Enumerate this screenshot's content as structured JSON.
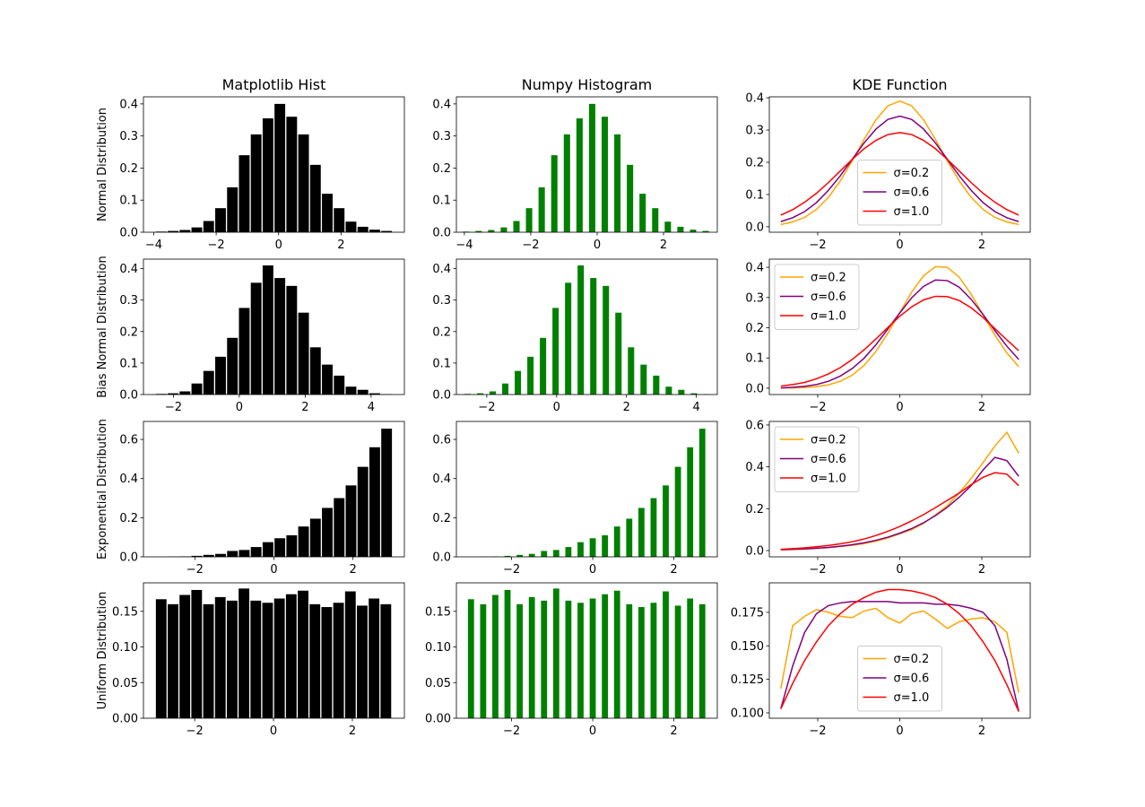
{
  "chart_data": [
    {
      "type": "histogram",
      "title": "Matplotlib Hist",
      "ylabel": "Normal Distribution",
      "color": "#000000",
      "rwidth": 0.9,
      "bins": [
        -3.95,
        -3.57,
        -3.19,
        -2.81,
        -2.43,
        -2.05,
        -1.67,
        -1.29,
        -0.91,
        -0.53,
        -0.15,
        0.23,
        0.61,
        0.99,
        1.37,
        1.75,
        2.13,
        2.51,
        2.89,
        3.27,
        3.65
      ],
      "values": [
        0.002,
        0.004,
        0.007,
        0.015,
        0.035,
        0.075,
        0.14,
        0.24,
        0.305,
        0.355,
        0.4,
        0.36,
        0.305,
        0.21,
        0.12,
        0.075,
        0.033,
        0.017,
        0.008,
        0.004
      ],
      "xlim": [
        -4.33,
        4.03
      ],
      "ylim": [
        0,
        0.422
      ],
      "xticks": [
        {
          "value": -4,
          "label": "−4"
        },
        {
          "value": -2,
          "label": "−2"
        },
        0,
        2
      ],
      "yticks": [
        {
          "value": 0,
          "label": "0.0"
        },
        0.1,
        0.2,
        0.3,
        0.4
      ]
    },
    {
      "type": "bar",
      "title": "Numpy Histogram",
      "color": "#008000",
      "bar_width": 0.19,
      "x": [
        -3.95,
        -3.57,
        -3.19,
        -2.81,
        -2.43,
        -2.05,
        -1.67,
        -1.29,
        -0.91,
        -0.53,
        -0.15,
        0.23,
        0.61,
        0.99,
        1.37,
        1.75,
        2.13,
        2.51,
        2.89,
        3.27
      ],
      "values": [
        0.002,
        0.004,
        0.007,
        0.015,
        0.035,
        0.075,
        0.14,
        0.24,
        0.305,
        0.355,
        0.4,
        0.36,
        0.305,
        0.21,
        0.12,
        0.075,
        0.033,
        0.017,
        0.008,
        0.004
      ],
      "xlim": [
        -4.24,
        3.62
      ],
      "ylim": [
        0,
        0.422
      ],
      "xticks": [
        {
          "value": -4,
          "label": "−4"
        },
        {
          "value": -2,
          "label": "−2"
        },
        0,
        2
      ],
      "yticks": [
        {
          "value": 0,
          "label": "0.0"
        },
        0.1,
        0.2,
        0.3,
        0.4
      ]
    },
    {
      "type": "line",
      "title": "KDE Function",
      "legend": "lower center",
      "x": [
        -2.9,
        -2.61,
        -2.32,
        -2.03,
        -1.74,
        -1.45,
        -1.16,
        -0.87,
        -0.58,
        -0.29,
        0,
        0.29,
        0.58,
        0.87,
        1.16,
        1.45,
        1.74,
        2.03,
        2.32,
        2.61,
        2.9
      ],
      "series": [
        {
          "name": "σ=0.2",
          "color": "#ffa500",
          "values": [
            0.007,
            0.015,
            0.029,
            0.054,
            0.091,
            0.142,
            0.204,
            0.271,
            0.332,
            0.375,
            0.39,
            0.375,
            0.332,
            0.271,
            0.204,
            0.142,
            0.091,
            0.054,
            0.029,
            0.015,
            0.007
          ]
        },
        {
          "name": "σ=0.6",
          "color": "#800080",
          "values": [
            0.016,
            0.028,
            0.047,
            0.075,
            0.113,
            0.158,
            0.209,
            0.26,
            0.303,
            0.333,
            0.343,
            0.333,
            0.303,
            0.26,
            0.209,
            0.158,
            0.113,
            0.075,
            0.047,
            0.028,
            0.016
          ]
        },
        {
          "name": "σ=1.0",
          "color": "#ff0000",
          "values": [
            0.036,
            0.053,
            0.076,
            0.104,
            0.137,
            0.173,
            0.209,
            0.242,
            0.268,
            0.286,
            0.292,
            0.286,
            0.268,
            0.242,
            0.209,
            0.173,
            0.137,
            0.104,
            0.076,
            0.053,
            0.036
          ]
        }
      ],
      "xlim": [
        -3.18,
        3.18
      ],
      "ylim": [
        -0.017,
        0.403
      ],
      "xticks": [
        {
          "value": -2,
          "label": "−2"
        },
        0,
        2
      ],
      "yticks": [
        {
          "value": 0,
          "label": "0.0"
        },
        0.1,
        0.2,
        0.3,
        0.4
      ]
    },
    {
      "type": "histogram",
      "ylabel": "Bias Normal Distribution",
      "color": "#000000",
      "rwidth": 0.9,
      "bins": [
        -2.55,
        -2.19,
        -1.83,
        -1.47,
        -1.11,
        -0.75,
        -0.39,
        -0.03,
        0.33,
        0.69,
        1.05,
        1.41,
        1.77,
        2.13,
        2.49,
        2.85,
        3.21,
        3.57,
        3.93,
        4.29,
        4.65
      ],
      "values": [
        0.002,
        0.004,
        0.01,
        0.035,
        0.075,
        0.12,
        0.18,
        0.275,
        0.355,
        0.41,
        0.37,
        0.345,
        0.26,
        0.15,
        0.095,
        0.06,
        0.025,
        0.015,
        0.004,
        0.001
      ],
      "xlim": [
        -2.91,
        5.01
      ],
      "ylim": [
        0,
        0.43
      ],
      "xticks": [
        {
          "value": -2,
          "label": "−2"
        },
        0,
        2,
        4
      ],
      "yticks": [
        {
          "value": 0,
          "label": "0.0"
        },
        0.1,
        0.2,
        0.3,
        0.4
      ]
    },
    {
      "type": "bar",
      "color": "#008000",
      "bar_width": 0.18,
      "x": [
        -2.55,
        -2.19,
        -1.83,
        -1.47,
        -1.11,
        -0.75,
        -0.39,
        -0.03,
        0.33,
        0.69,
        1.05,
        1.41,
        1.77,
        2.13,
        2.49,
        2.85,
        3.21,
        3.57,
        3.93,
        4.29
      ],
      "values": [
        0.002,
        0.004,
        0.01,
        0.035,
        0.075,
        0.12,
        0.18,
        0.275,
        0.355,
        0.41,
        0.37,
        0.345,
        0.26,
        0.15,
        0.095,
        0.06,
        0.025,
        0.015,
        0.004,
        0.001
      ],
      "xlim": [
        -2.87,
        4.6
      ],
      "ylim": [
        0,
        0.43
      ],
      "xticks": [
        {
          "value": -2,
          "label": "−2"
        },
        0,
        2,
        4
      ],
      "yticks": [
        {
          "value": 0,
          "label": "0.0"
        },
        0.1,
        0.2,
        0.3,
        0.4
      ]
    },
    {
      "type": "line",
      "legend": "upper left",
      "x": [
        -2.9,
        -2.61,
        -2.32,
        -2.03,
        -1.74,
        -1.45,
        -1.16,
        -0.87,
        -0.58,
        -0.29,
        0,
        0.29,
        0.58,
        0.87,
        1.16,
        1.45,
        1.74,
        2.03,
        2.32,
        2.61,
        2.9
      ],
      "series": [
        {
          "name": "σ=0.2",
          "color": "#ffa500",
          "values": [
            0.001,
            0.001,
            0.002,
            0.005,
            0.011,
            0.023,
            0.043,
            0.075,
            0.122,
            0.182,
            0.25,
            0.318,
            0.372,
            0.402,
            0.4,
            0.367,
            0.311,
            0.243,
            0.175,
            0.117,
            0.071
          ]
        },
        {
          "name": "σ=0.6",
          "color": "#800080",
          "values": [
            0.001,
            0.003,
            0.006,
            0.012,
            0.023,
            0.04,
            0.065,
            0.099,
            0.144,
            0.196,
            0.249,
            0.299,
            0.337,
            0.358,
            0.356,
            0.334,
            0.294,
            0.244,
            0.19,
            0.139,
            0.095
          ]
        },
        {
          "name": "σ=1.0",
          "color": "#ff0000",
          "values": [
            0.007,
            0.012,
            0.019,
            0.031,
            0.047,
            0.068,
            0.095,
            0.127,
            0.163,
            0.201,
            0.238,
            0.269,
            0.292,
            0.304,
            0.303,
            0.29,
            0.266,
            0.234,
            0.197,
            0.16,
            0.124
          ]
        }
      ],
      "xlim": [
        -3.18,
        3.18
      ],
      "ylim": [
        -0.021,
        0.427
      ],
      "xticks": [
        {
          "value": -2,
          "label": "−2"
        },
        0,
        2
      ],
      "yticks": [
        {
          "value": 0,
          "label": "0.0"
        },
        0.1,
        0.2,
        0.3,
        0.4
      ]
    },
    {
      "type": "histogram",
      "ylabel": "Exponential Distribution",
      "color": "#000000",
      "rwidth": 0.9,
      "bins": [
        -3,
        -2.7,
        -2.4,
        -2.1,
        -1.8,
        -1.5,
        -1.2,
        -0.9,
        -0.6,
        -0.3,
        0,
        0.3,
        0.6,
        0.9,
        1.2,
        1.5,
        1.8,
        2.1,
        2.4,
        2.7,
        3
      ],
      "values": [
        0,
        0.001,
        0.002,
        0.005,
        0.01,
        0.015,
        0.03,
        0.035,
        0.05,
        0.075,
        0.095,
        0.11,
        0.155,
        0.195,
        0.25,
        0.3,
        0.365,
        0.46,
        0.56,
        0.655
      ],
      "xlim": [
        -3.3,
        3.3
      ],
      "ylim": [
        0,
        0.692
      ],
      "xticks": [
        {
          "value": -2,
          "label": "−2"
        },
        0,
        2
      ],
      "yticks": [
        {
          "value": 0,
          "label": "0.0"
        },
        0.2,
        0.4,
        0.6
      ]
    },
    {
      "type": "bar",
      "color": "#008000",
      "bar_width": 0.15,
      "x": [
        -3,
        -2.7,
        -2.4,
        -2.1,
        -1.8,
        -1.5,
        -1.2,
        -0.9,
        -0.6,
        -0.3,
        0,
        0.3,
        0.6,
        0.9,
        1.2,
        1.5,
        1.8,
        2.1,
        2.4,
        2.7
      ],
      "values": [
        0,
        0.001,
        0.002,
        0.005,
        0.01,
        0.015,
        0.03,
        0.035,
        0.05,
        0.075,
        0.095,
        0.11,
        0.155,
        0.195,
        0.25,
        0.3,
        0.365,
        0.46,
        0.56,
        0.655
      ],
      "xlim": [
        -3.36,
        3.07
      ],
      "ylim": [
        0,
        0.692
      ],
      "xticks": [
        {
          "value": -2,
          "label": "−2"
        },
        0,
        2
      ],
      "yticks": [
        {
          "value": 0,
          "label": "0.0"
        },
        0.2,
        0.4,
        0.6
      ]
    },
    {
      "type": "line",
      "legend": "upper left",
      "x": [
        -2.9,
        -2.61,
        -2.32,
        -2.03,
        -1.74,
        -1.45,
        -1.16,
        -0.87,
        -0.58,
        -0.29,
        0,
        0.29,
        0.58,
        0.87,
        1.16,
        1.45,
        1.74,
        2.03,
        2.32,
        2.61,
        2.9
      ],
      "series": [
        {
          "name": "σ=0.2",
          "color": "#ffa500",
          "values": [
            0.003,
            0.005,
            0.007,
            0.01,
            0.014,
            0.019,
            0.025,
            0.033,
            0.045,
            0.06,
            0.08,
            0.1,
            0.13,
            0.17,
            0.215,
            0.275,
            0.345,
            0.42,
            0.5,
            0.565,
            0.465
          ]
        },
        {
          "name": "σ=0.6",
          "color": "#800080",
          "values": [
            0.004,
            0.006,
            0.008,
            0.011,
            0.015,
            0.021,
            0.028,
            0.037,
            0.049,
            0.064,
            0.083,
            0.105,
            0.133,
            0.167,
            0.207,
            0.255,
            0.31,
            0.385,
            0.445,
            0.43,
            0.355
          ]
        },
        {
          "name": "σ=1.0",
          "color": "#ff0000",
          "values": [
            0.006,
            0.009,
            0.013,
            0.018,
            0.024,
            0.032,
            0.042,
            0.055,
            0.072,
            0.092,
            0.115,
            0.142,
            0.172,
            0.205,
            0.24,
            0.275,
            0.315,
            0.35,
            0.372,
            0.365,
            0.31
          ]
        }
      ],
      "xlim": [
        -3.18,
        3.18
      ],
      "ylim": [
        -0.03,
        0.617
      ],
      "xticks": [
        {
          "value": -2,
          "label": "−2"
        },
        0,
        2
      ],
      "yticks": [
        {
          "value": 0,
          "label": "0.0"
        },
        0.2,
        0.4,
        0.6
      ]
    },
    {
      "type": "histogram",
      "ylabel": "Uniform Distribution",
      "color": "#000000",
      "rwidth": 0.9,
      "bins": [
        -3,
        -2.7,
        -2.4,
        -2.1,
        -1.8,
        -1.5,
        -1.2,
        -0.9,
        -0.6,
        -0.3,
        0,
        0.3,
        0.6,
        0.9,
        1.2,
        1.5,
        1.8,
        2.1,
        2.4,
        2.7,
        3
      ],
      "values": [
        0.167,
        0.16,
        0.173,
        0.18,
        0.16,
        0.17,
        0.165,
        0.182,
        0.165,
        0.162,
        0.168,
        0.174,
        0.179,
        0.16,
        0.156,
        0.162,
        0.178,
        0.158,
        0.168,
        0.16
      ],
      "xlim": [
        -3.3,
        3.32
      ],
      "ylim": [
        0,
        0.19
      ],
      "xticks": [
        {
          "value": -2,
          "label": "−2"
        },
        0,
        2
      ],
      "yticks": [
        {
          "value": 0,
          "label": "0.00"
        },
        0.05,
        {
          "value": 0.1,
          "label": "0.10"
        },
        0.15
      ]
    },
    {
      "type": "bar",
      "color": "#008000",
      "bar_width": 0.15,
      "x": [
        -3,
        -2.7,
        -2.4,
        -2.1,
        -1.8,
        -1.5,
        -1.2,
        -0.9,
        -0.6,
        -0.3,
        0,
        0.3,
        0.6,
        0.9,
        1.2,
        1.5,
        1.8,
        2.1,
        2.4,
        2.7
      ],
      "values": [
        0.167,
        0.16,
        0.173,
        0.18,
        0.16,
        0.17,
        0.165,
        0.182,
        0.165,
        0.162,
        0.168,
        0.174,
        0.179,
        0.16,
        0.156,
        0.162,
        0.178,
        0.158,
        0.168,
        0.16
      ],
      "xlim": [
        -3.36,
        3.07
      ],
      "ylim": [
        0,
        0.19
      ],
      "xticks": [
        {
          "value": -2,
          "label": "−2"
        },
        0,
        2
      ],
      "yticks": [
        {
          "value": 0,
          "label": "0.00"
        },
        0.05,
        {
          "value": 0.1,
          "label": "0.10"
        },
        0.15
      ]
    },
    {
      "type": "line",
      "legend": "lower center",
      "x": [
        -2.9,
        -2.61,
        -2.32,
        -2.03,
        -1.74,
        -1.45,
        -1.16,
        -0.87,
        -0.58,
        -0.29,
        0,
        0.29,
        0.58,
        0.87,
        1.16,
        1.45,
        1.74,
        2.03,
        2.32,
        2.61,
        2.9
      ],
      "series": [
        {
          "name": "σ=0.2",
          "color": "#ffa500",
          "values": [
            0.118,
            0.165,
            0.172,
            0.177,
            0.175,
            0.172,
            0.171,
            0.176,
            0.178,
            0.171,
            0.167,
            0.174,
            0.176,
            0.17,
            0.163,
            0.168,
            0.17,
            0.171,
            0.168,
            0.16,
            0.115
          ]
        },
        {
          "name": "σ=0.6",
          "color": "#800080",
          "values": [
            0.103,
            0.135,
            0.16,
            0.174,
            0.18,
            0.182,
            0.183,
            0.183,
            0.183,
            0.183,
            0.182,
            0.182,
            0.182,
            0.181,
            0.181,
            0.18,
            0.178,
            0.175,
            0.165,
            0.14,
            0.101
          ]
        },
        {
          "name": "σ=1.0",
          "color": "#ff0000",
          "values": [
            0.103,
            0.122,
            0.139,
            0.153,
            0.165,
            0.174,
            0.181,
            0.186,
            0.19,
            0.192,
            0.192,
            0.191,
            0.189,
            0.186,
            0.181,
            0.174,
            0.165,
            0.153,
            0.139,
            0.121,
            0.101
          ]
        }
      ],
      "xlim": [
        -3.18,
        3.18
      ],
      "ylim": [
        0.096,
        0.197
      ],
      "xticks": [
        {
          "value": -2,
          "label": "−2"
        },
        0,
        2
      ],
      "yticks": [
        {
          "value": 0.1,
          "label": "0.100"
        },
        0.125,
        {
          "value": 0.15,
          "label": "0.150"
        },
        0.175
      ]
    }
  ]
}
